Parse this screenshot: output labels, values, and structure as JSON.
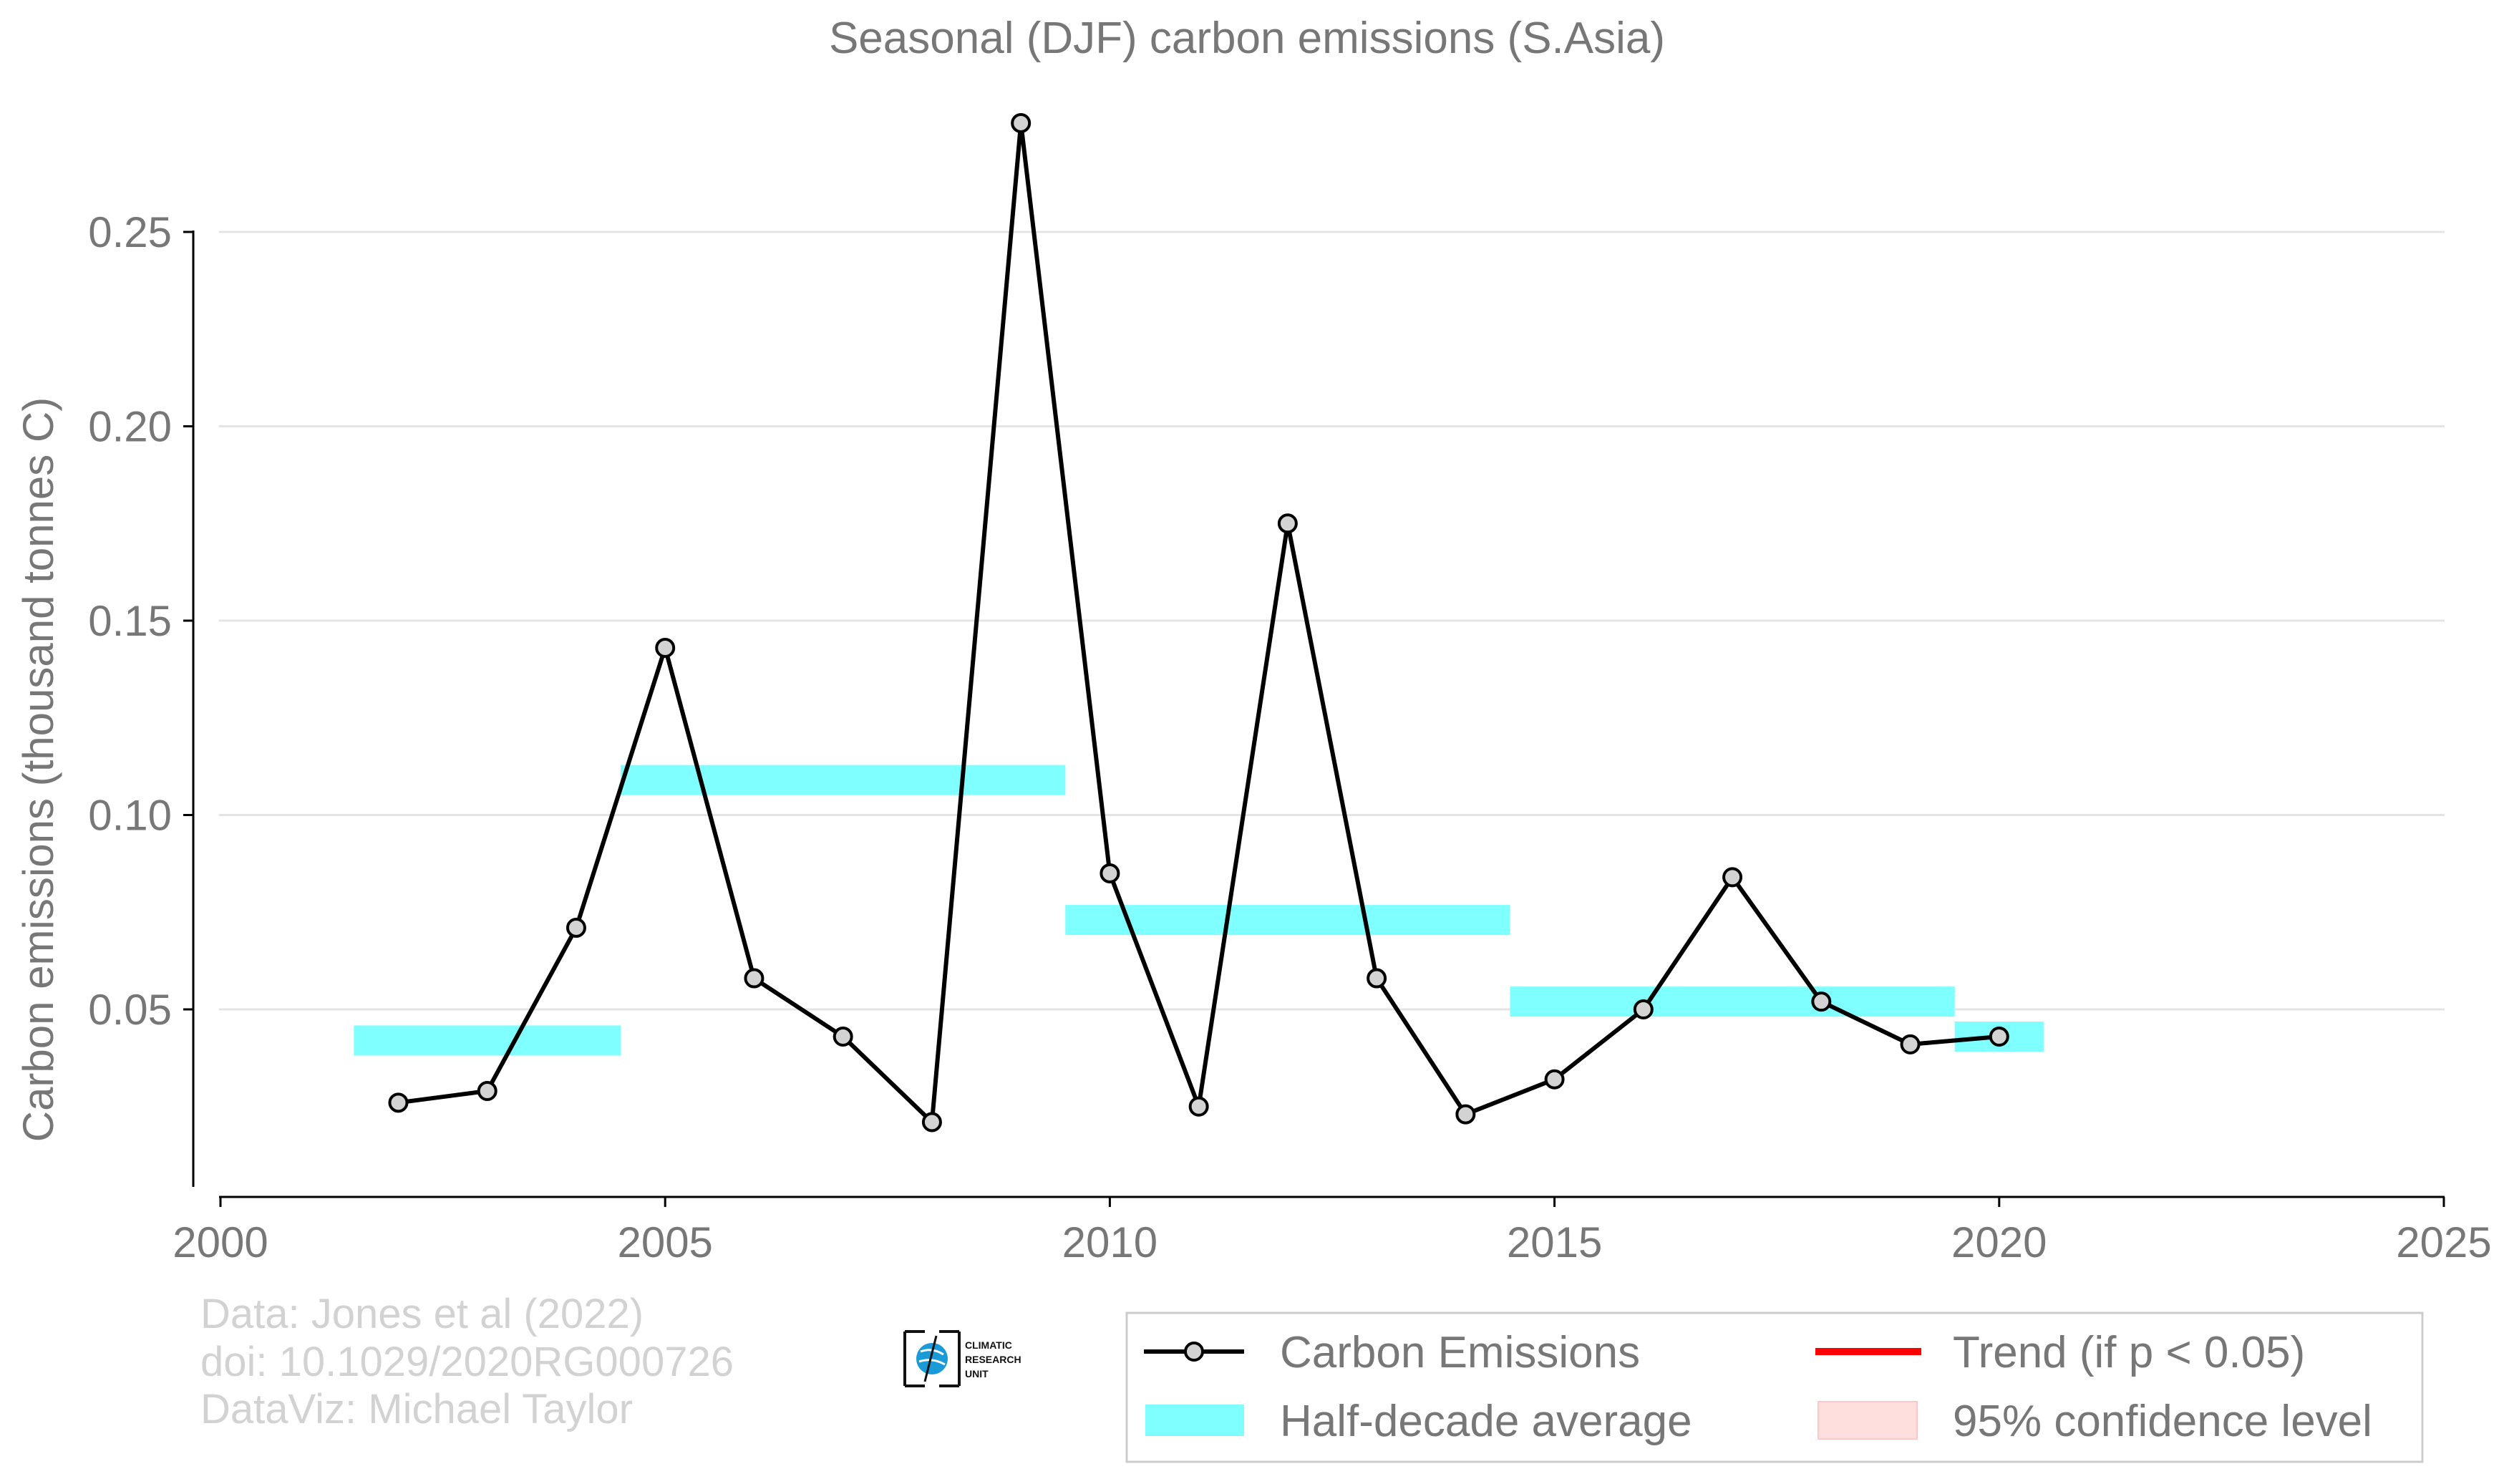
{
  "chart_data": {
    "type": "line",
    "title": "Seasonal (DJF) carbon emissions (S.Asia)",
    "xlabel": "",
    "ylabel": "Carbon emissions (thousand tonnes C)",
    "xlim": [
      2000,
      2025
    ],
    "ylim": [
      0,
      0.28
    ],
    "x_ticks": [
      2000,
      2005,
      2010,
      2015,
      2020,
      2025
    ],
    "y_ticks": [
      0.05,
      0.1,
      0.15,
      0.2,
      0.25
    ],
    "x_tick_labels": [
      "2000",
      "2005",
      "2010",
      "2015",
      "2020",
      "2025"
    ],
    "y_tick_labels": [
      "0.05",
      "0.10",
      "0.15",
      "0.20",
      "0.25"
    ],
    "grid": "horizontal",
    "series": [
      {
        "name": "Carbon Emissions",
        "color": "#000000",
        "marker_fill": "#d3d3d3",
        "x": [
          2002,
          2003,
          2004,
          2005,
          2006,
          2007,
          2008,
          2009,
          2010,
          2011,
          2012,
          2013,
          2014,
          2015,
          2016,
          2017,
          2018,
          2019,
          2020
        ],
        "y": [
          0.026,
          0.029,
          0.071,
          0.143,
          0.058,
          0.043,
          0.021,
          0.278,
          0.085,
          0.025,
          0.175,
          0.058,
          0.023,
          0.032,
          0.05,
          0.084,
          0.052,
          0.041,
          0.043
        ]
      }
    ],
    "half_decade_average": {
      "name": "Half-decade average",
      "color": "#7fffff",
      "segments": [
        {
          "x_start": 2001.5,
          "x_end": 2004.5,
          "y": 0.042
        },
        {
          "x_start": 2004.5,
          "x_end": 2009.5,
          "y": 0.109
        },
        {
          "x_start": 2009.5,
          "x_end": 2014.5,
          "y": 0.073
        },
        {
          "x_start": 2014.5,
          "x_end": 2019.5,
          "y": 0.052
        },
        {
          "x_start": 2019.5,
          "x_end": 2020.5,
          "y": 0.043
        }
      ]
    },
    "legend": {
      "placement": "bottom-right",
      "entries": [
        {
          "label": "Carbon Emissions",
          "kind": "line-marker",
          "color": "#000000"
        },
        {
          "label": "Trend (if p < 0.05)",
          "kind": "line",
          "color": "#ff0000"
        },
        {
          "label": "Half-decade average",
          "kind": "band",
          "color": "#7fffff"
        },
        {
          "label": "95% confidence level",
          "kind": "patch",
          "color": "#ffdede"
        }
      ]
    },
    "credits": [
      "Data: Jones et al (2022)",
      "doi: 10.1029/2020RG000726",
      "DataViz: Michael Taylor"
    ],
    "logo_text": [
      "CLIMATIC",
      "RESEARCH",
      "UNIT"
    ]
  }
}
